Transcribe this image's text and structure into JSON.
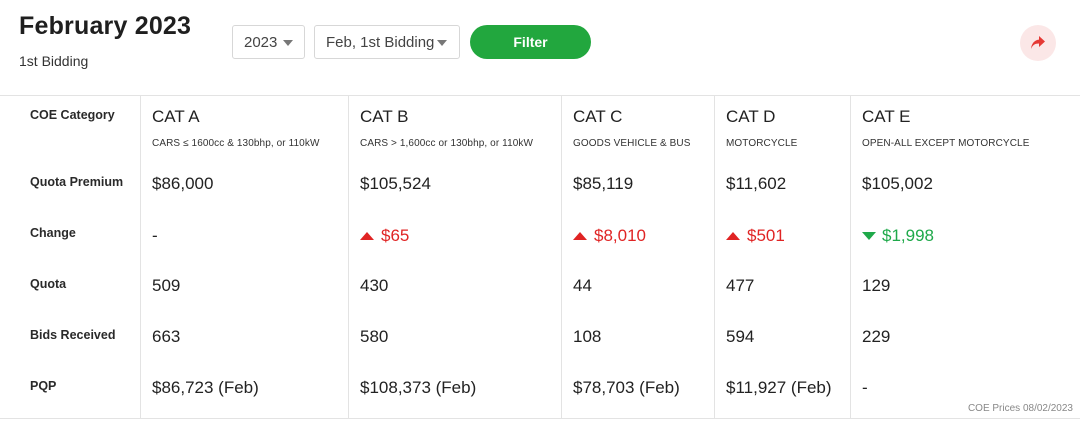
{
  "header": {
    "title": "February 2023",
    "subtitle": "1st Bidding",
    "year_select": "2023",
    "bidding_select": "Feb, 1st Bidding",
    "filter_label": "Filter"
  },
  "row_labels": {
    "category": "COE Category",
    "premium": "Quota Premium",
    "change": "Change",
    "quota": "Quota",
    "bids": "Bids Received",
    "pqp": "PQP"
  },
  "categories": [
    {
      "name": "CAT A",
      "desc": "CARS ≤ 1600cc & 130bhp, or 110kW",
      "premium": "$86,000",
      "change": "-",
      "change_dir": "none",
      "quota": "509",
      "bids": "663",
      "pqp": "$86,723 (Feb)"
    },
    {
      "name": "CAT B",
      "desc": "CARS > 1,600cc or 130bhp, or 110kW",
      "premium": "$105,524",
      "change": "$65",
      "change_dir": "up",
      "quota": "430",
      "bids": "580",
      "pqp": "$108,373 (Feb)"
    },
    {
      "name": "CAT C",
      "desc": "GOODS VEHICLE & BUS",
      "premium": "$85,119",
      "change": "$8,010",
      "change_dir": "up",
      "quota": "44",
      "bids": "108",
      "pqp": "$78,703 (Feb)"
    },
    {
      "name": "CAT D",
      "desc": "MOTORCYCLE",
      "premium": "$11,602",
      "change": "$501",
      "change_dir": "up",
      "quota": "477",
      "bids": "594",
      "pqp": "$11,927 (Feb)"
    },
    {
      "name": "CAT E",
      "desc": "OPEN-ALL EXCEPT MOTORCYCLE",
      "premium": "$105,002",
      "change": "$1,998",
      "change_dir": "down",
      "quota": "129",
      "bids": "229",
      "pqp": "-"
    }
  ],
  "footnote": "COE Prices 08/02/2023",
  "colors": {
    "accent": "#22a73e",
    "up": "#e02424",
    "down": "#1fa94a",
    "share_bg": "#fbe7e7",
    "share_icon": "#e53935"
  },
  "icons": {
    "share": "share-arrow-icon",
    "caret": "caret-down-icon"
  }
}
